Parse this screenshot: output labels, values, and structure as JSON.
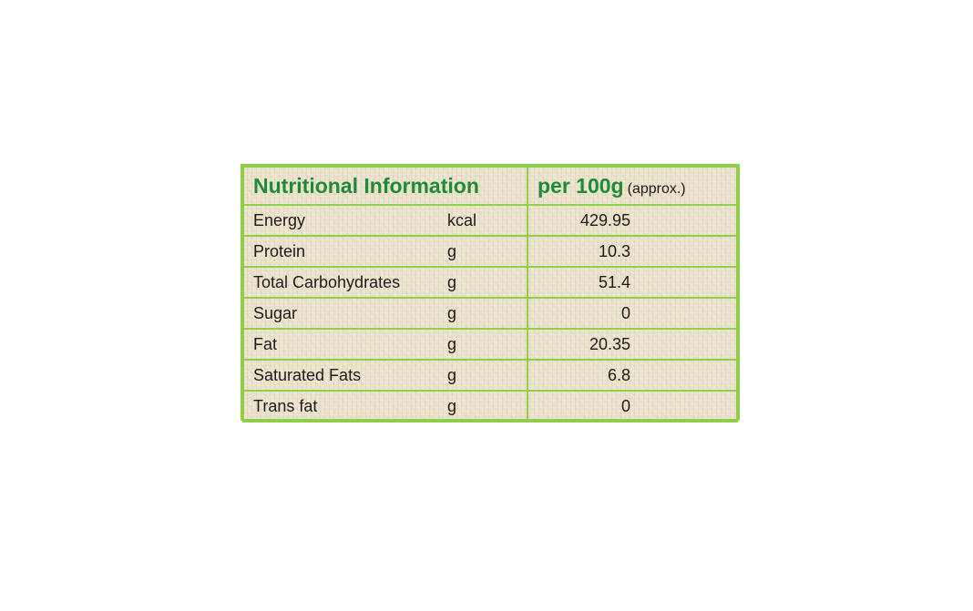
{
  "table": {
    "title": "Nutritional Information",
    "per_label": "per 100g",
    "per_note": "(approx.)",
    "rows": [
      {
        "nutrient": "Energy",
        "unit": "kcal",
        "value": "429.95"
      },
      {
        "nutrient": "Protein",
        "unit": "g",
        "value": "10.3"
      },
      {
        "nutrient": "Total Carbohydrates",
        "unit": "g",
        "value": "51.4"
      },
      {
        "nutrient": "Sugar",
        "unit": "g",
        "value": "0"
      },
      {
        "nutrient": "Fat",
        "unit": "g",
        "value": "20.35"
      },
      {
        "nutrient": "Saturated Fats",
        "unit": "g",
        "value": "6.8"
      },
      {
        "nutrient": "Trans fat",
        "unit": "g",
        "value": "0"
      }
    ]
  },
  "colors": {
    "border": "#8fcf4a",
    "heading": "#1f8a3c",
    "background": "#ece3cc",
    "text": "#1c1c1c"
  }
}
